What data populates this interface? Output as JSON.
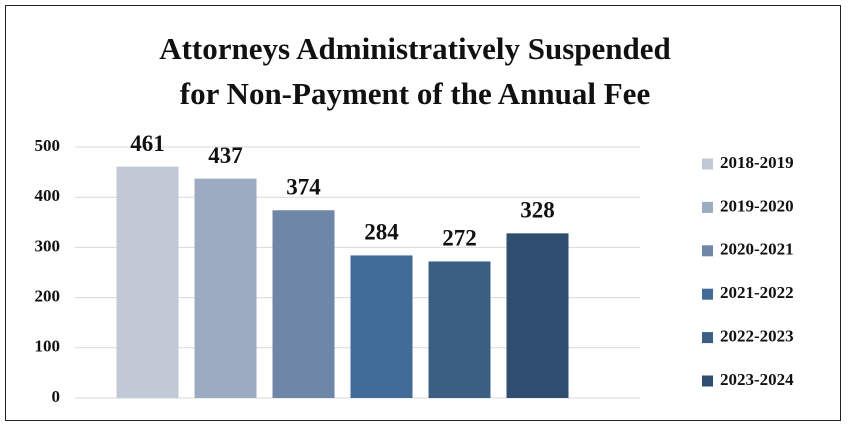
{
  "chart_data": {
    "type": "bar",
    "title": "Attorneys Administratively Suspended for Non-Payment of the Annual Fee",
    "series": [
      {
        "name": "2018-2019",
        "color": "#c2c9d6",
        "values": [
          461
        ]
      },
      {
        "name": "2019-2020",
        "color": "#9dabc0",
        "values": [
          437
        ]
      },
      {
        "name": "2020-2021",
        "color": "#6e87a9",
        "values": [
          374
        ]
      },
      {
        "name": "2021-2022",
        "color": "#416b98",
        "values": [
          284
        ]
      },
      {
        "name": "2022-2023",
        "color": "#3b5f82",
        "values": [
          272
        ]
      },
      {
        "name": "2023-2024",
        "color": "#2f4d6e",
        "values": [
          328
        ]
      }
    ],
    "ylim": [
      0,
      500
    ],
    "yticks": [
      0,
      100,
      200,
      300,
      400,
      500
    ],
    "grid": true,
    "legend": "right"
  }
}
